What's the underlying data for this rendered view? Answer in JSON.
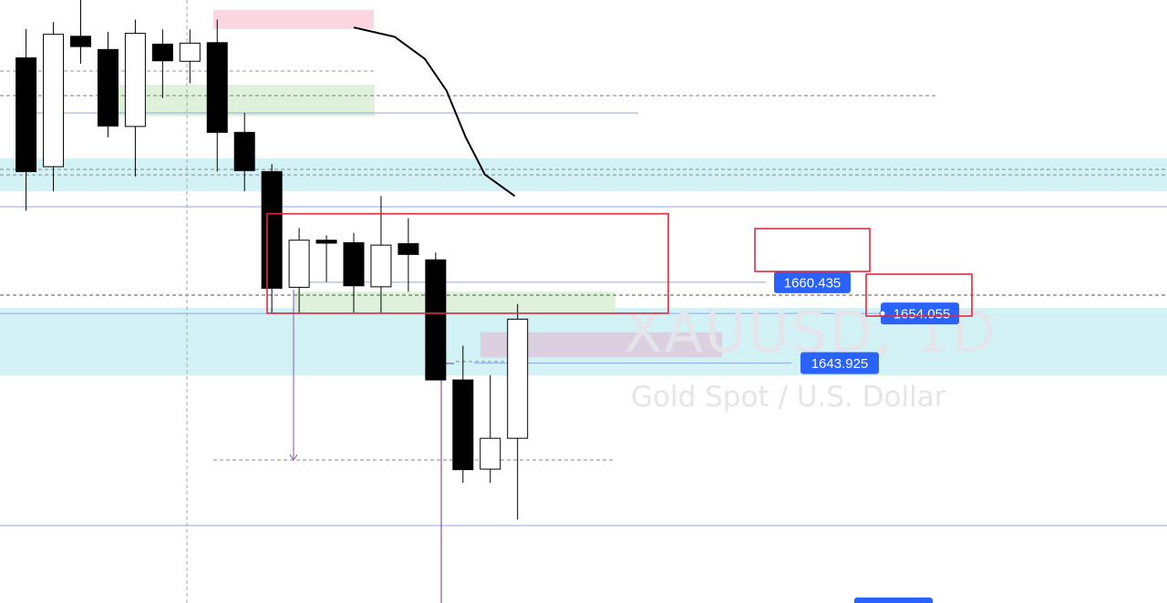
{
  "watermark": {
    "symbol": "XAUUSD, 1D",
    "description": "Gold Spot / U.S. Dollar"
  },
  "price_labels": [
    {
      "name": "label-1660",
      "text": "1660.435",
      "price": 1660.435,
      "highlighted": true
    },
    {
      "name": "label-1654",
      "text": "1654.055",
      "price": 1654.055,
      "highlighted": true
    },
    {
      "name": "label-1643",
      "text": "1643.925",
      "price": 1643.925,
      "highlighted": false
    }
  ],
  "colors": {
    "bull_body": "#ffffff",
    "bear_body": "#000000",
    "candle_border": "#000000",
    "zone_cyan": "#d3f2f6",
    "zone_green": "#dff1da",
    "zone_pink": "#fbd5df",
    "zone_purple": "#dccfe0",
    "highlight_box": "#e22a3a",
    "price_tag": "#2962ff",
    "blue_line": "#8fa6e8",
    "measure_line": "#7e57c2",
    "moving_average": "#000000"
  },
  "chart_data": {
    "type": "candlestick",
    "symbol": "XAUUSD",
    "interval": "1D",
    "candles": [
      {
        "o": 1706.2,
        "h": 1712.1,
        "l": 1675.0,
        "c": 1683.0
      },
      {
        "o": 1684.0,
        "h": 1713.5,
        "l": 1679.0,
        "c": 1711.0
      },
      {
        "o": 1710.6,
        "h": 1718.0,
        "l": 1705.0,
        "c": 1708.5
      },
      {
        "o": 1707.9,
        "h": 1711.5,
        "l": 1690.0,
        "c": 1692.3
      },
      {
        "o": 1692.2,
        "h": 1714.0,
        "l": 1682.0,
        "c": 1711.2
      },
      {
        "o": 1709.0,
        "h": 1712.0,
        "l": 1698.0,
        "c": 1705.6
      },
      {
        "o": 1705.5,
        "h": 1712.0,
        "l": 1701.0,
        "c": 1709.2
      },
      {
        "o": 1709.3,
        "h": 1714.0,
        "l": 1683.0,
        "c": 1691.0
      },
      {
        "o": 1691.0,
        "h": 1695.0,
        "l": 1679.0,
        "c": 1683.2
      },
      {
        "o": 1683.0,
        "h": 1684.5,
        "l": 1654.1,
        "c": 1659.2
      },
      {
        "o": 1659.4,
        "h": 1671.5,
        "l": 1654.1,
        "c": 1669.0
      },
      {
        "o": 1669.0,
        "h": 1670.0,
        "l": 1660.5,
        "c": 1668.4
      },
      {
        "o": 1668.5,
        "h": 1670.5,
        "l": 1654.1,
        "c": 1659.7
      },
      {
        "o": 1659.5,
        "h": 1678.0,
        "l": 1654.1,
        "c": 1668.0
      },
      {
        "o": 1668.3,
        "h": 1673.5,
        "l": 1658.5,
        "c": 1666.1
      },
      {
        "o": 1665.0,
        "h": 1666.5,
        "l": 1640.5,
        "c": 1640.5
      },
      {
        "o": 1640.5,
        "h": 1647.5,
        "l": 1619.5,
        "c": 1622.2
      },
      {
        "o": 1622.3,
        "h": 1641.5,
        "l": 1619.5,
        "c": 1628.6
      },
      {
        "o": 1628.6,
        "h": 1656.0,
        "l": 1612.0,
        "c": 1652.9
      }
    ],
    "horizontal_levels": [
      1660.435,
      1654.055,
      1643.925
    ],
    "zones": [
      {
        "name": "cyan-upper-zone",
        "from": 1679.0,
        "to": 1685.7
      },
      {
        "name": "cyan-lower-zone",
        "from": 1641.4,
        "to": 1655.2
      },
      {
        "name": "green-upper-zone",
        "from": 1694.3,
        "to": 1700.7
      },
      {
        "name": "green-lower-zone",
        "from": 1654.0,
        "to": 1658.5
      },
      {
        "name": "pink-zone",
        "from": 1712.1,
        "to": 1716.0
      },
      {
        "name": "purple-zone",
        "from": 1645.1,
        "to": 1650.2
      }
    ],
    "highlight_rectangle": {
      "from": 1654.1,
      "to": 1674.4
    },
    "moving_average": [
      {
        "i": 12,
        "v": 1712.4
      },
      {
        "i": 13.5,
        "v": 1710.5
      },
      {
        "i": 14.6,
        "v": 1706.0
      },
      {
        "i": 15.4,
        "v": 1699.5
      },
      {
        "i": 16.1,
        "v": 1690.0
      },
      {
        "i": 16.8,
        "v": 1682.4
      },
      {
        "i": 17.9,
        "v": 1678.0
      }
    ],
    "ylim": [
      1595.0,
      1718.0
    ],
    "grid": false
  }
}
